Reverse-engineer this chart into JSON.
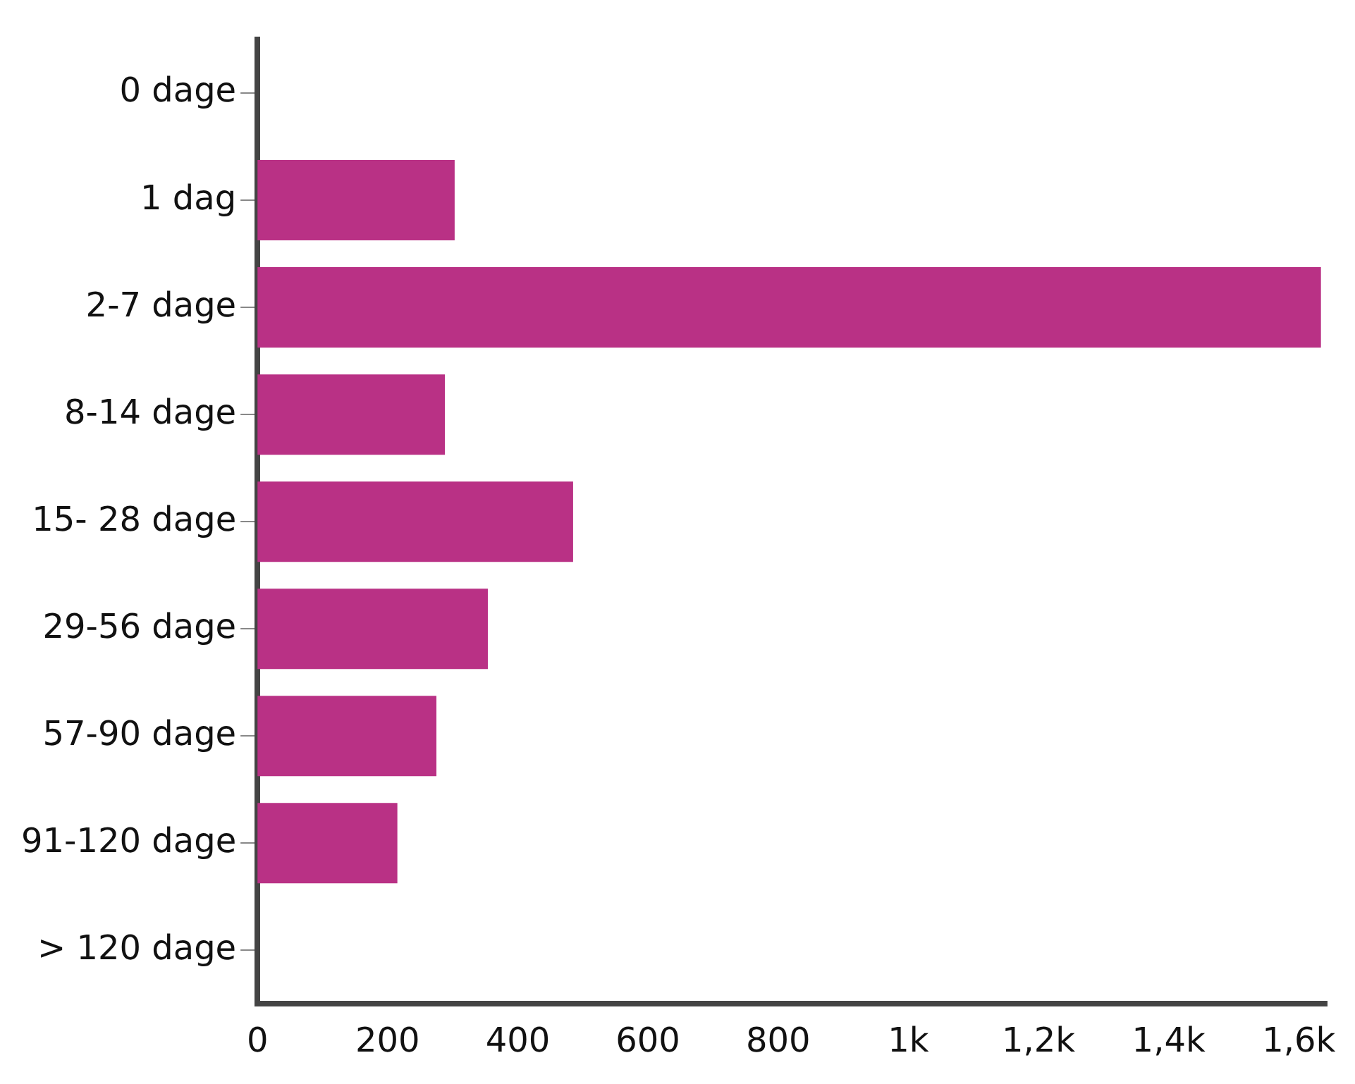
{
  "chart_data": {
    "type": "bar",
    "orientation": "horizontal",
    "categories": [
      "0 dage",
      "1 dag",
      "2-7 dage",
      "8-14 dage",
      "15- 28 dage",
      "29-56 dage",
      "57-90 dage",
      "91-120 dage",
      "> 120 dage"
    ],
    "values": [
      0,
      303,
      1634,
      288,
      485,
      354,
      275,
      215,
      0
    ],
    "color": "#b93185",
    "xlim": [
      0,
      1643
    ],
    "xticks": [
      0,
      200,
      400,
      600,
      800,
      {
        "value": 1000,
        "label": "1k"
      },
      {
        "value": 1200,
        "label": "1,2k"
      },
      {
        "value": 1400,
        "label": "1,4k"
      },
      {
        "value": 1600,
        "label": "1,6k"
      }
    ],
    "grid": false,
    "legend": false
  }
}
